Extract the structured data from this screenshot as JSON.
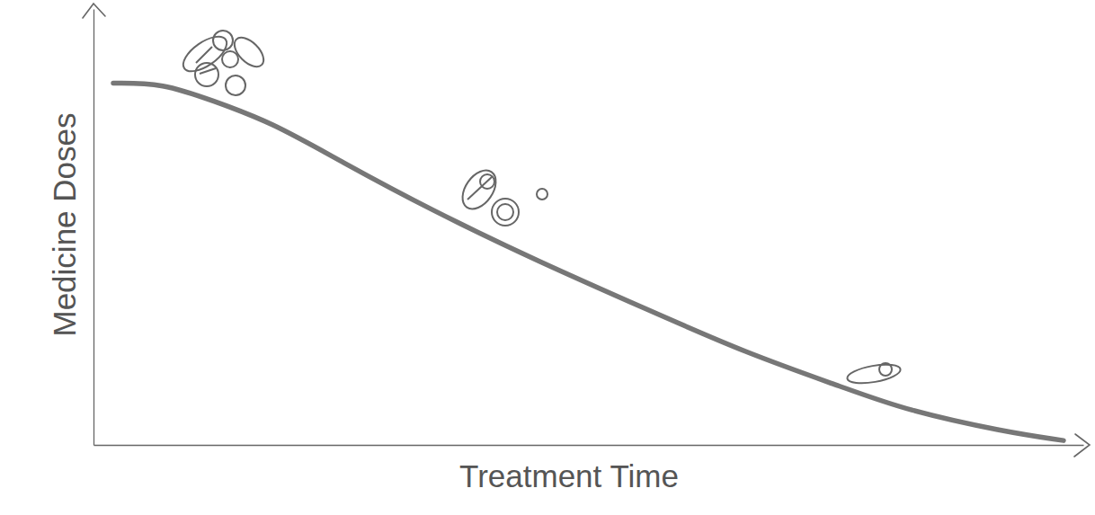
{
  "chart_data": {
    "type": "line",
    "xlabel": "Treatment Time",
    "ylabel": "Medicine Doses",
    "x": [
      2,
      7,
      12,
      18,
      25,
      34,
      45,
      56,
      66,
      76,
      82,
      92,
      98
    ],
    "values": [
      83,
      83,
      79,
      74,
      65,
      54,
      42,
      31,
      21,
      13,
      8,
      3,
      1
    ],
    "color": "#777777",
    "xlim": [
      0,
      100
    ],
    "ylim": [
      0,
      100
    ],
    "grid": false,
    "tick_labels": false
  }
}
